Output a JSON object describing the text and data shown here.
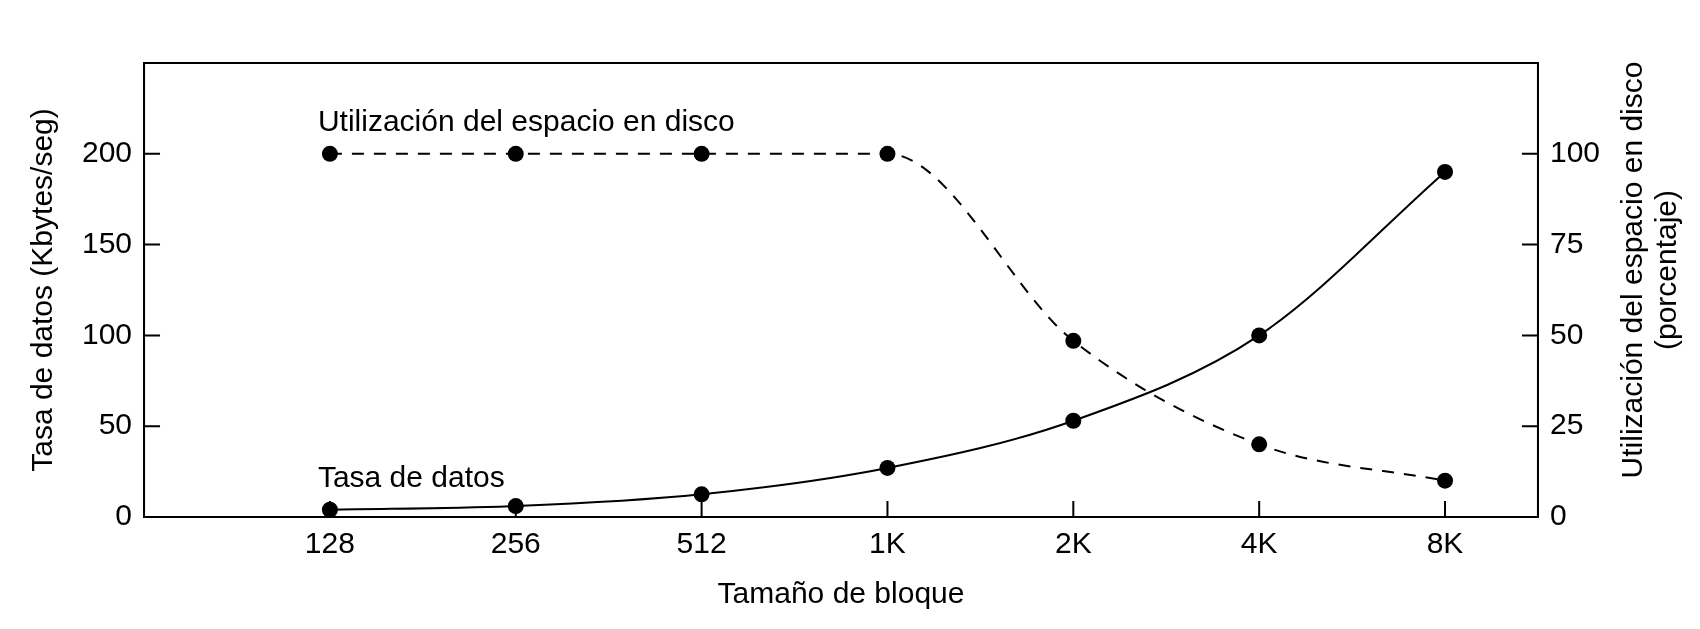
{
  "chart_data": {
    "type": "line",
    "xlabel": "Tamaño de bloque",
    "ylabel": "Tasa de datos (Kbytes/seg)",
    "y2label": "Utilización del espacio en disco\n(porcentaje)",
    "categories": [
      "128",
      "256",
      "512",
      "1K",
      "2K",
      "4K",
      "8K"
    ],
    "series": [
      {
        "name": "Utilización del espacio en disco",
        "color": "#000000",
        "values": [
          100,
          100,
          100,
          100,
          48.5,
          20,
          10
        ],
        "axis": "y2",
        "line_style": "dashed"
      },
      {
        "name": "Tasa de datos",
        "color": "#000000",
        "values": [
          4,
          6,
          12.5,
          27,
          53,
          100,
          190
        ],
        "line_style": "solid"
      }
    ],
    "ylim": [
      0,
      250
    ],
    "yticks": [
      0,
      50,
      100,
      150,
      200
    ],
    "y2lim": [
      0,
      125
    ],
    "y2ticks": [
      0,
      25,
      50,
      75,
      100
    ],
    "marker": "circle",
    "grid": false,
    "legend": false
  }
}
